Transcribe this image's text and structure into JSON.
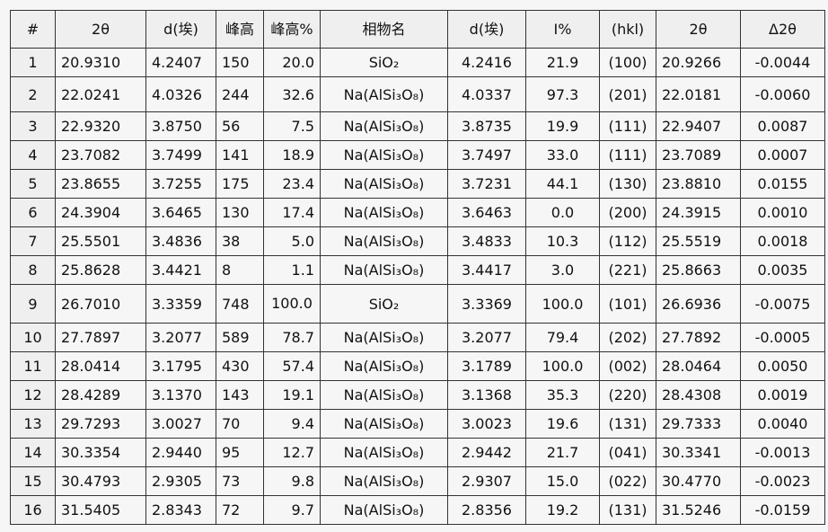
{
  "table": {
    "headers": [
      "#",
      "2θ",
      "d(埃)",
      "峰高",
      "峰高%",
      "相物名",
      "d(埃)",
      "I%",
      "(hkl)",
      "2θ",
      "Δ2θ"
    ],
    "rows": [
      [
        "1",
        "20.9310",
        "4.2407",
        "150",
        "20.0",
        "SiO₂",
        "4.2416",
        "21.9",
        "(100)",
        "20.9266",
        "-0.0044"
      ],
      [
        "2",
        "22.0241",
        "4.0326",
        "244",
        "32.6",
        "Na(AlSi₃O₈)",
        "4.0337",
        "97.3",
        "(201)",
        "22.0181",
        "-0.0060"
      ],
      [
        "3",
        "22.9320",
        "3.8750",
        "56",
        "7.5",
        "Na(AlSi₃O₈)",
        "3.8735",
        "19.9",
        "(111)",
        "22.9407",
        "0.0087"
      ],
      [
        "4",
        "23.7082",
        "3.7499",
        "141",
        "18.9",
        "Na(AlSi₃O₈)",
        "3.7497",
        "33.0",
        "(111)",
        "23.7089",
        "0.0007"
      ],
      [
        "5",
        "23.8655",
        "3.7255",
        "175",
        "23.4",
        "Na(AlSi₃O₈)",
        "3.7231",
        "44.1",
        "(130)",
        "23.8810",
        "0.0155"
      ],
      [
        "6",
        "24.3904",
        "3.6465",
        "130",
        "17.4",
        "Na(AlSi₃O₈)",
        "3.6463",
        "0.0",
        "(200)",
        "24.3915",
        "0.0010"
      ],
      [
        "7",
        "25.5501",
        "3.4836",
        "38",
        "5.0",
        "Na(AlSi₃O₈)",
        "3.4833",
        "10.3",
        "(112)",
        "25.5519",
        "0.0018"
      ],
      [
        "8",
        "25.8628",
        "3.4421",
        "8",
        "1.1",
        "Na(AlSi₃O₈)",
        "3.4417",
        "3.0",
        "(221)",
        "25.8663",
        "0.0035"
      ],
      [
        "9",
        "26.7010",
        "3.3359",
        "748",
        "100.0",
        "SiO₂",
        "3.3369",
        "100.0",
        "(101)",
        "26.6936",
        "-0.0075"
      ],
      [
        "10",
        "27.7897",
        "3.2077",
        "589",
        "78.7",
        "Na(AlSi₃O₈)",
        "3.2077",
        "79.4",
        "(202)",
        "27.7892",
        "-0.0005"
      ],
      [
        "11",
        "28.0414",
        "3.1795",
        "430",
        "57.4",
        "Na(AlSi₃O₈)",
        "3.1789",
        "100.0",
        "(002)",
        "28.0464",
        "0.0050"
      ],
      [
        "12",
        "28.4289",
        "3.1370",
        "143",
        "19.1",
        "Na(AlSi₃O₈)",
        "3.1368",
        "35.3",
        "(220)",
        "28.4308",
        "0.0019"
      ],
      [
        "13",
        "29.7293",
        "3.0027",
        "70",
        "9.4",
        "Na(AlSi₃O₈)",
        "3.0023",
        "19.6",
        "(131)",
        "29.7333",
        "0.0040"
      ],
      [
        "14",
        "30.3354",
        "2.9440",
        "95",
        "12.7",
        "Na(AlSi₃O₈)",
        "2.9442",
        "21.7",
        "(041)",
        "30.3341",
        "-0.0013"
      ],
      [
        "15",
        "30.4793",
        "2.9305",
        "73",
        "9.8",
        "Na(AlSi₃O₈)",
        "2.9307",
        "15.0",
        "(022)",
        "30.4770",
        "-0.0023"
      ],
      [
        "16",
        "31.5405",
        "2.8343",
        "72",
        "9.7",
        "Na(AlSi₃O₈)",
        "2.8356",
        "19.2",
        "(131)",
        "31.5246",
        "-0.0159"
      ]
    ]
  }
}
